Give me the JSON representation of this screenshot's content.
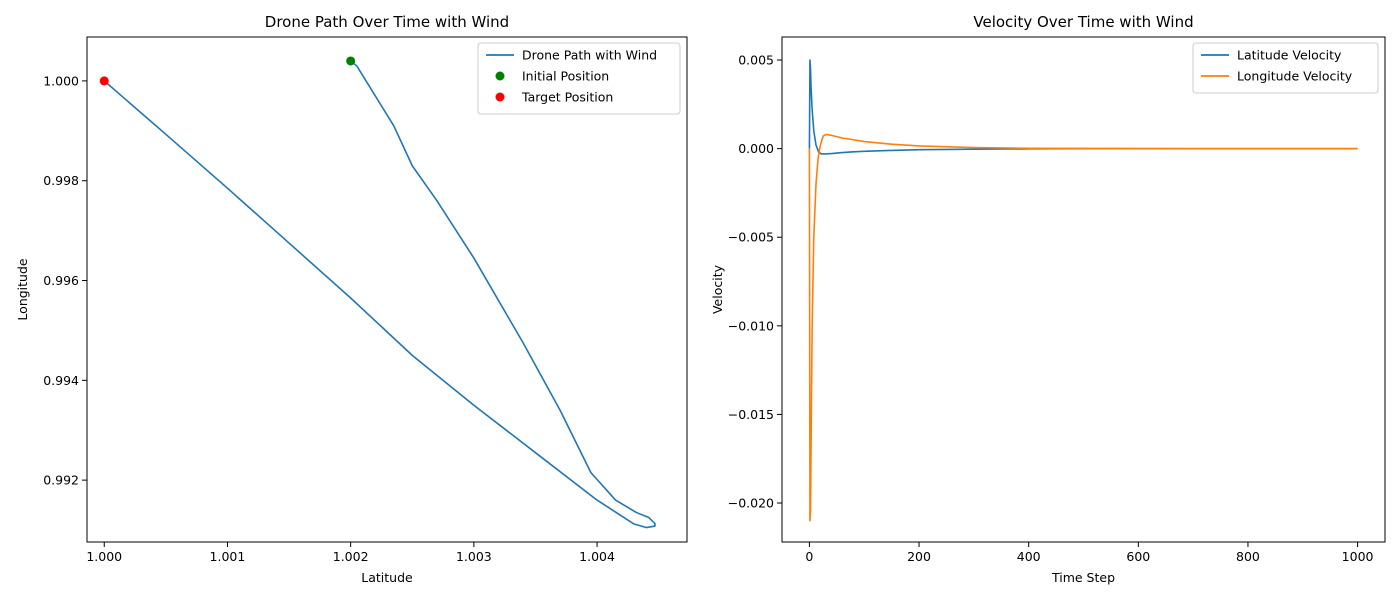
{
  "chart_data": [
    {
      "type": "line",
      "title": "Drone Path Over Time with Wind",
      "xlabel": "Latitude",
      "ylabel": "Longitude",
      "xlim": [
        0.99986,
        1.00473
      ],
      "ylim": [
        0.99076,
        1.00088
      ],
      "xticks": [
        1.0,
        1.001,
        1.002,
        1.003,
        1.004
      ],
      "xtick_labels": [
        "1.000",
        "1.001",
        "1.002",
        "1.003",
        "1.004"
      ],
      "yticks": [
        0.992,
        0.994,
        0.996,
        0.998,
        1.0
      ],
      "ytick_labels": [
        "0.992",
        "0.994",
        "0.996",
        "0.998",
        "1.000"
      ],
      "grid": false,
      "legend": "top-right",
      "series": [
        {
          "name": "Drone Path with Wind",
          "kind": "line",
          "color": "#1f77b4",
          "x": [
            1.002,
            1.00205,
            1.00215,
            1.00235,
            1.0025,
            1.0027,
            1.003,
            1.0034,
            1.0037,
            1.00395,
            1.00415,
            1.00432,
            1.00442,
            1.00447,
            1.00447,
            1.0044,
            1.0043,
            1.004,
            1.0035,
            1.003,
            1.0025,
            1.002,
            1.0015,
            1.001,
            1.0005,
            1.0
          ],
          "y": [
            1.0004,
            1.0003,
            0.9999,
            0.9991,
            0.9983,
            0.9976,
            0.99645,
            0.99475,
            0.9934,
            0.99215,
            0.9916,
            0.99135,
            0.99125,
            0.99113,
            0.99108,
            0.99105,
            0.99112,
            0.9916,
            0.99255,
            0.9935,
            0.9945,
            0.99565,
            0.99675,
            0.99785,
            0.99893,
            1.0
          ]
        },
        {
          "name": "Initial Position",
          "kind": "scatter",
          "color": "#008000",
          "x": [
            1.002
          ],
          "y": [
            1.0004
          ]
        },
        {
          "name": "Target Position",
          "kind": "scatter",
          "color": "#ff0000",
          "x": [
            1.0
          ],
          "y": [
            1.0
          ]
        }
      ]
    },
    {
      "type": "line",
      "title": "Velocity Over Time with Wind",
      "xlabel": "Time Step",
      "ylabel": "Velocity",
      "xlim": [
        -50,
        1050
      ],
      "ylim": [
        -0.0222,
        0.0063
      ],
      "xticks": [
        0,
        200,
        400,
        600,
        800,
        1000
      ],
      "xtick_labels": [
        "0",
        "200",
        "400",
        "600",
        "800",
        "1000"
      ],
      "yticks": [
        0.005,
        0.0,
        -0.005,
        -0.01,
        -0.015,
        -0.02
      ],
      "ytick_labels": [
        "0.005",
        "0.000",
        "−0.005",
        "−0.010",
        "−0.015",
        "−0.020"
      ],
      "grid": false,
      "legend": "top-right",
      "series": [
        {
          "name": "Latitude Velocity",
          "kind": "line",
          "color": "#1f77b4",
          "x": [
            0,
            1,
            2,
            3,
            5,
            8,
            12,
            17,
            22,
            28,
            40,
            60,
            80,
            100,
            150,
            200,
            300,
            400,
            500,
            700,
            1000
          ],
          "y": [
            0.0,
            0.005,
            0.0045,
            0.0035,
            0.0022,
            0.001,
            0.0002,
            -0.0002,
            -0.0003,
            -0.0003,
            -0.00028,
            -0.00022,
            -0.00018,
            -0.00015,
            -0.0001,
            -6e-05,
            -3e-05,
            -1e-05,
            0.0,
            0.0,
            0.0
          ]
        },
        {
          "name": "Longitude Velocity",
          "kind": "line",
          "color": "#ff7f0e",
          "x": [
            0,
            1,
            2,
            3,
            5,
            8,
            12,
            16,
            20,
            25,
            30,
            40,
            60,
            80,
            100,
            150,
            200,
            300,
            400,
            500,
            700,
            1000
          ],
          "y": [
            0.0,
            -0.021,
            -0.0205,
            -0.017,
            -0.01,
            -0.005,
            -0.002,
            -0.0005,
            0.0002,
            0.0007,
            0.0008,
            0.00075,
            0.0006,
            0.0005,
            0.0004,
            0.00025,
            0.00015,
            6e-05,
            2e-05,
            1e-05,
            0.0,
            0.0
          ]
        }
      ]
    }
  ]
}
